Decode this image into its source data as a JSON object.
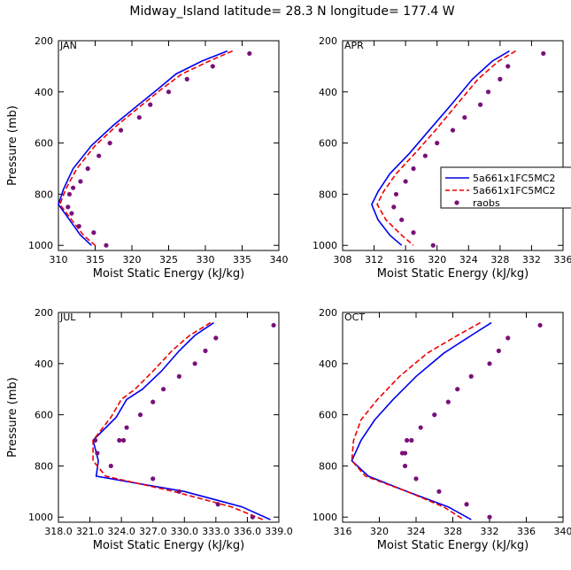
{
  "title": "Midway_Island   latitude= 28.3 N longitude= 177.4 W",
  "legend": {
    "entries": [
      {
        "label": "5a661x1FC5MC2",
        "color": "#0000ee",
        "style": "solid"
      },
      {
        "label": "5a661x1FC5MC2",
        "color": "#ee0000",
        "style": "dashed"
      },
      {
        "label": "raobs",
        "color": "#7a107a",
        "style": "dot"
      }
    ]
  },
  "chart_data": [
    {
      "type": "line",
      "panel": "JAN",
      "xlabel": "Moist Static Energy (kJ/kg)",
      "ylabel": "Pressure (mb)",
      "xlim": [
        310,
        340
      ],
      "xticks": [
        310,
        315,
        320,
        325,
        330,
        335,
        340
      ],
      "xtick_labels": [
        "310",
        "315",
        "320",
        "325",
        "330",
        "335",
        "340"
      ],
      "ylim": [
        200,
        1020
      ],
      "yticks": [
        200,
        400,
        600,
        800,
        1000
      ],
      "ytick_labels": [
        "200",
        "400",
        "600",
        "800",
        "1000"
      ],
      "series": [
        {
          "name": "5a661x1FC5MC2 (solid blue)",
          "color": "#0000ee",
          "style": "solid",
          "x": [
            333.0,
            329.5,
            326.0,
            323.5,
            320.5,
            317.5,
            314.5,
            312.0,
            310.7,
            310.0,
            311.5,
            313.0,
            314.5
          ],
          "y": [
            240,
            280,
            330,
            390,
            460,
            530,
            610,
            700,
            780,
            840,
            900,
            960,
            1000
          ]
        },
        {
          "name": "5a661x1FC5MC2 (dashed red)",
          "color": "#ee0000",
          "style": "dashed",
          "x": [
            333.7,
            330.5,
            326.8,
            324.0,
            321.0,
            318.0,
            315.0,
            312.5,
            311.0,
            310.2,
            311.8,
            313.4,
            315.0
          ],
          "y": [
            240,
            280,
            330,
            390,
            460,
            530,
            610,
            700,
            780,
            840,
            900,
            960,
            1000
          ]
        },
        {
          "name": "raobs",
          "color": "#7a107a",
          "style": "dot",
          "x": [
            336.0,
            331.0,
            327.5,
            325.0,
            322.5,
            321.0,
            318.5,
            317.0,
            315.5,
            314.0,
            313.0,
            312.0,
            311.5,
            311.3,
            311.8,
            312.8,
            314.8,
            316.5
          ],
          "y": [
            250,
            300,
            350,
            400,
            450,
            500,
            550,
            600,
            650,
            700,
            750,
            775,
            800,
            850,
            875,
            925,
            950,
            1000
          ]
        }
      ]
    },
    {
      "type": "line",
      "panel": "APR",
      "xlabel": "Moist Static Energy (kJ/kg)",
      "ylabel": "Pressure (mb)",
      "xlim": [
        308,
        336
      ],
      "xticks": [
        308,
        312,
        316,
        320,
        324,
        328,
        332,
        336
      ],
      "xtick_labels": [
        "308",
        "312",
        "316",
        "320",
        "324",
        "328",
        "332",
        "336"
      ],
      "ylim": [
        200,
        1020
      ],
      "yticks": [
        200,
        400,
        600,
        800,
        1000
      ],
      "ytick_labels": [
        "200",
        "400",
        "600",
        "800",
        "1000"
      ],
      "series": [
        {
          "name": "5a661x1FC5MC2 (solid blue)",
          "color": "#0000ee",
          "style": "solid",
          "x": [
            329.2,
            327.0,
            324.5,
            321.8,
            319.0,
            316.5,
            314.0,
            312.5,
            311.7,
            312.5,
            314.0,
            315.5
          ],
          "y": [
            240,
            280,
            350,
            450,
            550,
            640,
            720,
            790,
            840,
            900,
            960,
            1000
          ]
        },
        {
          "name": "5a661x1FC5MC2 (dashed red)",
          "color": "#ee0000",
          "style": "dashed",
          "x": [
            330.0,
            327.8,
            325.2,
            322.5,
            319.8,
            317.2,
            314.8,
            313.2,
            312.4,
            313.5,
            315.5,
            317.0
          ],
          "y": [
            240,
            280,
            350,
            450,
            550,
            640,
            720,
            790,
            840,
            900,
            960,
            1000
          ]
        },
        {
          "name": "raobs",
          "color": "#7a107a",
          "style": "dot",
          "x": [
            333.5,
            329.0,
            328.0,
            326.5,
            325.5,
            323.5,
            322.0,
            320.0,
            318.5,
            317.0,
            316.0,
            314.8,
            314.5,
            315.5,
            317.0,
            319.5
          ],
          "y": [
            250,
            300,
            350,
            400,
            450,
            500,
            550,
            600,
            650,
            700,
            750,
            800,
            850,
            900,
            950,
            1000
          ]
        }
      ]
    },
    {
      "type": "line",
      "panel": "JUL",
      "xlabel": "Moist Static Energy (kJ/kg)",
      "ylabel": "Pressure (mb)",
      "xlim": [
        318.0,
        339.0
      ],
      "xticks": [
        318.0,
        321.0,
        324.0,
        327.0,
        330.0,
        333.0,
        336.0,
        339.0
      ],
      "xtick_labels": [
        "318.0",
        "321.0",
        "324.0",
        "327.0",
        "330.0",
        "333.0",
        "336.0",
        "339.0"
      ],
      "ylim": [
        200,
        1020
      ],
      "yticks": [
        200,
        400,
        600,
        800,
        1000
      ],
      "ytick_labels": [
        "200",
        "400",
        "600",
        "800",
        "1000"
      ],
      "series": [
        {
          "name": "5a661x1FC5MC2 (solid blue)",
          "color": "#0000ee",
          "style": "solid",
          "x": [
            332.8,
            331.0,
            329.5,
            327.8,
            326.0,
            324.5,
            323.5,
            321.3,
            321.8,
            321.6,
            330.0,
            335.5,
            338.2
          ],
          "y": [
            240,
            290,
            350,
            430,
            500,
            540,
            610,
            700,
            780,
            840,
            900,
            960,
            1010
          ]
        },
        {
          "name": "5a661x1FC5MC2 (dashed red)",
          "color": "#ee0000",
          "style": "dashed",
          "x": [
            332.5,
            330.5,
            328.8,
            327.0,
            325.3,
            324.0,
            323.0,
            321.3,
            321.3,
            322.5,
            329.0,
            334.5,
            337.5
          ],
          "y": [
            240,
            290,
            350,
            430,
            500,
            540,
            610,
            700,
            780,
            840,
            900,
            960,
            1010
          ]
        },
        {
          "name": "raobs",
          "color": "#7a107a",
          "style": "dot",
          "x": [
            338.5,
            333.0,
            332.0,
            331.0,
            329.5,
            328.0,
            327.0,
            325.8,
            324.5,
            324.2,
            323.8,
            321.5,
            321.7,
            323.0,
            327.0,
            329.5,
            333.2,
            336.5
          ],
          "y": [
            250,
            300,
            350,
            400,
            450,
            500,
            550,
            600,
            650,
            700,
            700,
            700,
            750,
            800,
            850,
            900,
            950,
            1000
          ]
        }
      ]
    },
    {
      "type": "line",
      "panel": "OCT",
      "xlabel": "Moist Static Energy (kJ/kg)",
      "ylabel": "Pressure (mb)",
      "xlim": [
        316,
        340
      ],
      "xticks": [
        316,
        320,
        324,
        328,
        332,
        336,
        340
      ],
      "xtick_labels": [
        "316",
        "320",
        "324",
        "328",
        "332",
        "336",
        "340"
      ],
      "ylim": [
        200,
        1020
      ],
      "yticks": [
        200,
        400,
        600,
        800,
        1000
      ],
      "ytick_labels": [
        "200",
        "400",
        "600",
        "800",
        "1000"
      ],
      "series": [
        {
          "name": "5a661x1FC5MC2 (solid blue)",
          "color": "#0000ee",
          "style": "solid",
          "x": [
            332.2,
            330.0,
            327.0,
            324.0,
            321.5,
            319.5,
            318.0,
            317.0,
            318.8,
            323.0,
            327.5,
            330.0
          ],
          "y": [
            240,
            290,
            360,
            450,
            540,
            620,
            700,
            780,
            840,
            900,
            960,
            1010
          ]
        },
        {
          "name": "5a661x1FC5MC2 (dashed red)",
          "color": "#ee0000",
          "style": "dashed",
          "x": [
            331.0,
            328.5,
            325.2,
            322.2,
            319.8,
            318.0,
            317.2,
            317.0,
            318.5,
            323.0,
            327.0,
            329.2
          ],
          "y": [
            240,
            290,
            360,
            450,
            540,
            620,
            700,
            780,
            840,
            900,
            960,
            1010
          ]
        },
        {
          "name": "raobs",
          "color": "#7a107a",
          "style": "dot",
          "x": [
            337.5,
            334.0,
            333.0,
            332.0,
            330.0,
            328.5,
            327.5,
            326.0,
            324.5,
            323.5,
            323.0,
            322.8,
            322.5,
            322.8,
            324.0,
            326.5,
            329.5,
            332.0
          ],
          "y": [
            250,
            300,
            350,
            400,
            450,
            500,
            550,
            600,
            650,
            700,
            700,
            750,
            750,
            800,
            850,
            900,
            950,
            1000
          ]
        }
      ]
    }
  ]
}
